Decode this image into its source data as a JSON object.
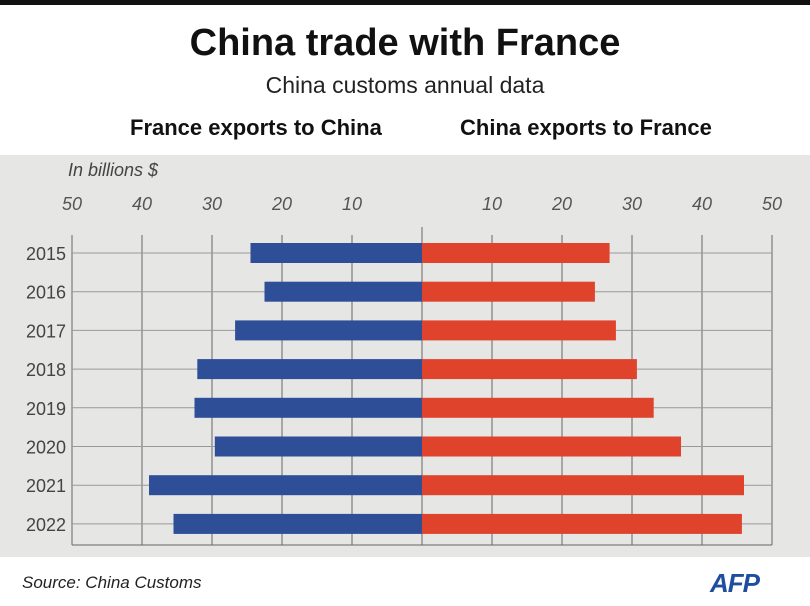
{
  "chart_data": {
    "type": "bar",
    "title": "China trade with France",
    "subtitle": "China customs annual data",
    "unit_label": "In billions $",
    "categories": [
      "2015",
      "2016",
      "2017",
      "2018",
      "2019",
      "2020",
      "2021",
      "2022"
    ],
    "series": [
      {
        "name": "France exports to China",
        "color": "#2f4e98",
        "values": [
          24.5,
          22.5,
          26.7,
          32.1,
          32.5,
          29.6,
          39.0,
          35.5
        ]
      },
      {
        "name": "China exports to France",
        "color": "#e0432c",
        "values": [
          26.8,
          24.7,
          27.7,
          30.7,
          33.1,
          37.0,
          46.0,
          45.7
        ]
      }
    ],
    "xlim": [
      0,
      50
    ],
    "ticks": [
      10,
      20,
      30,
      40,
      50
    ],
    "tick_labels": [
      "10",
      "20",
      "30",
      "40",
      "50"
    ],
    "grid": true,
    "source": "Source: China Customs",
    "logo": "AFP"
  }
}
